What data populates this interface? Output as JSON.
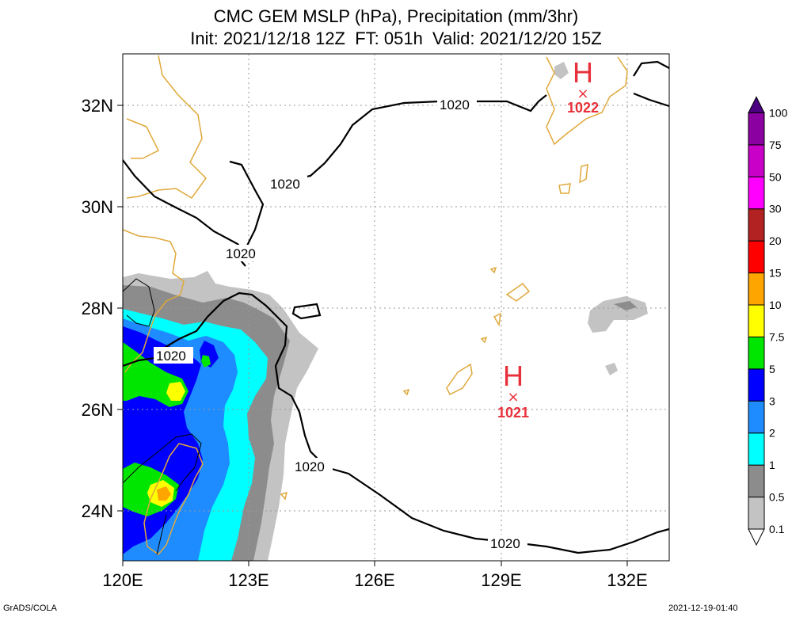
{
  "title": {
    "line1": "CMC GEM MSLP (hPa), Precipitation (mm/3hr)",
    "line2": "Init: 2021/12/18 12Z  FT: 051h  Valid: 2021/12/20 15Z"
  },
  "axes": {
    "lat_labels": [
      "32N",
      "30N",
      "28N",
      "26N",
      "24N"
    ],
    "lon_labels": [
      "120E",
      "123E",
      "126E",
      "129E",
      "132E"
    ]
  },
  "isobar_labels": [
    "1020",
    "1020",
    "1020",
    "1020",
    "1020",
    "1020"
  ],
  "pressure_centers": [
    {
      "symbol": "H",
      "value": "1022",
      "color": "#e8303a"
    },
    {
      "symbol": "H",
      "value": "1021",
      "color": "#e8303a"
    }
  ],
  "colorbar": {
    "levels": [
      "0.1",
      "0.5",
      "1",
      "2",
      "3",
      "5",
      "7.5",
      "10",
      "15",
      "20",
      "30",
      "50",
      "75",
      "100"
    ],
    "colors": [
      "#c3c3c3",
      "#8c8c8c",
      "#00ffff",
      "#1e8cff",
      "#0000ff",
      "#00e600",
      "#ffff00",
      "#ffa500",
      "#ff0000",
      "#b22222",
      "#ff00ff",
      "#c800c8",
      "#8a00a0",
      "#4b0082"
    ]
  },
  "colors": {
    "coast": "#e0a83a",
    "isobar": "#000000",
    "grid": "#999999",
    "high": "#e8303a"
  },
  "footer": {
    "left": "GrADS/COLA",
    "right": "2021-12-19-01:40"
  }
}
